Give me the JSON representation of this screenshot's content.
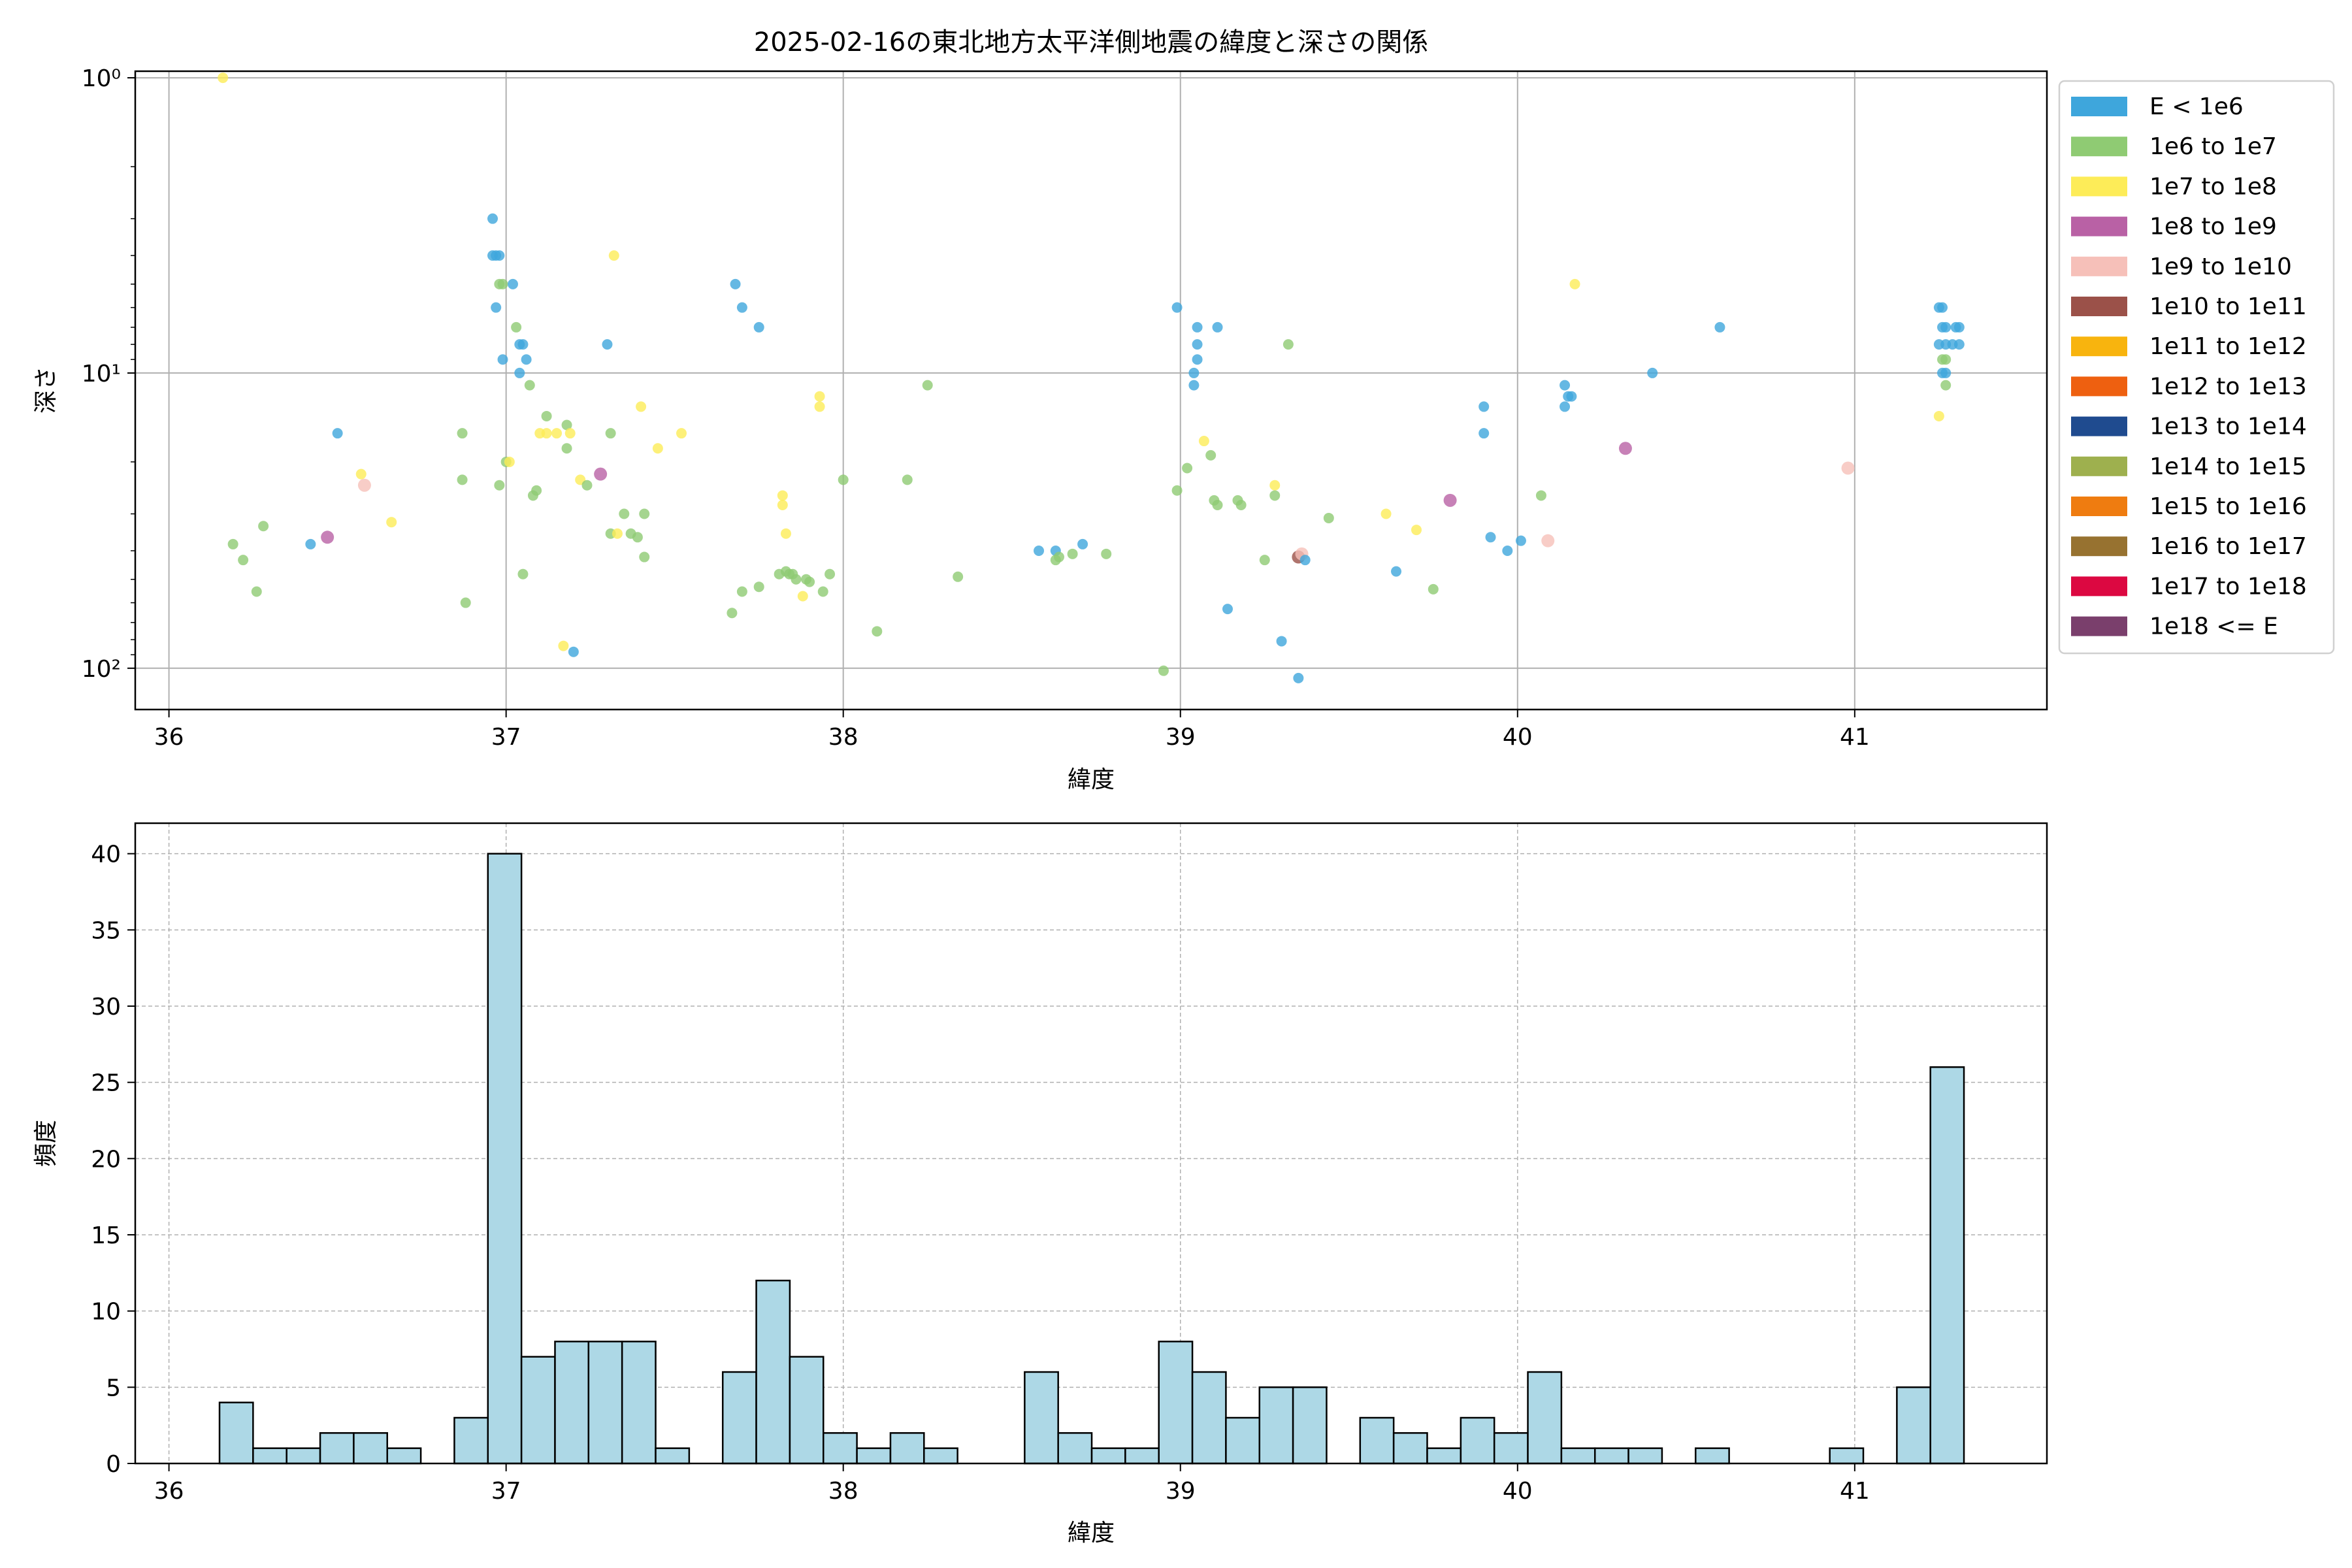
{
  "chart_data": [
    {
      "type": "scatter",
      "title": "2025-02-16の東北地方太平洋側地震の緯度と深さの関係",
      "xlabel": "緯度",
      "ylabel": "深さ",
      "xlim": [
        35.9,
        41.57
      ],
      "ylim": [
        0.95,
        138
      ],
      "y_scale": "log",
      "y_inverted": true,
      "grid": true,
      "x_ticks": [
        36,
        37,
        38,
        39,
        40,
        41
      ],
      "y_ticks": [
        {
          "value": 1,
          "label": "10⁰"
        },
        {
          "value": 10,
          "label": "10¹"
        },
        {
          "value": 100,
          "label": "10²"
        }
      ],
      "legend": {
        "placement": "outside-right",
        "entries": [
          {
            "label": "E < 1e6",
            "color": "#3ea6dc"
          },
          {
            "label": "1e6 to 1e7",
            "color": "#8fcb73"
          },
          {
            "label": "1e7 to 1e8",
            "color": "#fdec58"
          },
          {
            "label": "1e8 to 1e9",
            "color": "#b961a5"
          },
          {
            "label": "1e9 to 1e10",
            "color": "#f6c0b9"
          },
          {
            "label": "1e10 to 1e11",
            "color": "#9b5149"
          },
          {
            "label": "1e11 to 1e12",
            "color": "#f8b40e"
          },
          {
            "label": "1e12 to 1e13",
            "color": "#ee6010"
          },
          {
            "label": "1e13 to 1e14",
            "color": "#1f4b8f"
          },
          {
            "label": "1e14 to 1e15",
            "color": "#9eb04e"
          },
          {
            "label": "1e15 to 1e16",
            "color": "#ef7c10"
          },
          {
            "label": "1e16 to 1e17",
            "color": "#977230"
          },
          {
            "label": "1e17 to 1e18",
            "color": "#dc0841"
          },
          {
            "label": "1e18 <= E",
            "color": "#7a3f6c"
          }
        ]
      },
      "points": [
        [
          36.16,
          1.0,
          2
        ],
        [
          36.19,
          38,
          1
        ],
        [
          36.22,
          43,
          1
        ],
        [
          36.26,
          55,
          1
        ],
        [
          36.28,
          33,
          1
        ],
        [
          36.42,
          38,
          0
        ],
        [
          36.47,
          36,
          3
        ],
        [
          36.5,
          16,
          0
        ],
        [
          36.57,
          22,
          2
        ],
        [
          36.58,
          24,
          4
        ],
        [
          36.66,
          32,
          2
        ],
        [
          36.87,
          16,
          1
        ],
        [
          36.87,
          23,
          1
        ],
        [
          36.88,
          60,
          1
        ],
        [
          36.96,
          3.0,
          0
        ],
        [
          36.96,
          4.0,
          0
        ],
        [
          36.97,
          4.0,
          0
        ],
        [
          36.98,
          4.0,
          0
        ],
        [
          36.98,
          5.0,
          1
        ],
        [
          36.97,
          6.0,
          0
        ],
        [
          36.99,
          5.0,
          1
        ],
        [
          36.99,
          9.0,
          0
        ],
        [
          36.98,
          24,
          1
        ],
        [
          37.0,
          20,
          1
        ],
        [
          37.01,
          20,
          2
        ],
        [
          37.02,
          5.0,
          0
        ],
        [
          37.03,
          7.0,
          1
        ],
        [
          37.04,
          8.0,
          0
        ],
        [
          37.05,
          8.0,
          0
        ],
        [
          37.04,
          10,
          0
        ],
        [
          37.06,
          9.0,
          0
        ],
        [
          37.05,
          48,
          1
        ],
        [
          37.07,
          11,
          1
        ],
        [
          37.08,
          26,
          1
        ],
        [
          37.09,
          25,
          1
        ],
        [
          37.1,
          16,
          2
        ],
        [
          37.12,
          14,
          1
        ],
        [
          37.12,
          16,
          2
        ],
        [
          37.15,
          16,
          2
        ],
        [
          37.17,
          84,
          2
        ],
        [
          37.18,
          18,
          1
        ],
        [
          37.18,
          15,
          1
        ],
        [
          37.19,
          16,
          2
        ],
        [
          37.2,
          88,
          0
        ],
        [
          37.22,
          23,
          2
        ],
        [
          37.24,
          24,
          1
        ],
        [
          37.28,
          22,
          3
        ],
        [
          37.3,
          8.0,
          0
        ],
        [
          37.31,
          16,
          1
        ],
        [
          37.31,
          35,
          1
        ],
        [
          37.32,
          4.0,
          2
        ],
        [
          37.33,
          35,
          2
        ],
        [
          37.35,
          30,
          1
        ],
        [
          37.37,
          35,
          1
        ],
        [
          37.39,
          36,
          1
        ],
        [
          37.4,
          13,
          2
        ],
        [
          37.41,
          30,
          1
        ],
        [
          37.41,
          42,
          1
        ],
        [
          37.45,
          18,
          2
        ],
        [
          37.52,
          16,
          2
        ],
        [
          37.67,
          65,
          1
        ],
        [
          37.68,
          5.0,
          0
        ],
        [
          37.7,
          6.0,
          0
        ],
        [
          37.7,
          55,
          1
        ],
        [
          37.75,
          7.0,
          0
        ],
        [
          37.75,
          53,
          1
        ],
        [
          37.81,
          48,
          1
        ],
        [
          37.82,
          28,
          2
        ],
        [
          37.82,
          26,
          2
        ],
        [
          37.83,
          35,
          2
        ],
        [
          37.83,
          47,
          1
        ],
        [
          37.84,
          48,
          1
        ],
        [
          37.85,
          48,
          1
        ],
        [
          37.86,
          50,
          1
        ],
        [
          37.88,
          57,
          2
        ],
        [
          37.89,
          50,
          1
        ],
        [
          37.9,
          51,
          1
        ],
        [
          37.93,
          12,
          2
        ],
        [
          37.93,
          13,
          2
        ],
        [
          37.94,
          55,
          1
        ],
        [
          37.96,
          48,
          1
        ],
        [
          38.0,
          23,
          1
        ],
        [
          38.1,
          75,
          1
        ],
        [
          38.19,
          23,
          1
        ],
        [
          38.25,
          11,
          1
        ],
        [
          38.34,
          49,
          1
        ],
        [
          38.58,
          40,
          0
        ],
        [
          38.63,
          40,
          0
        ],
        [
          38.63,
          43,
          1
        ],
        [
          38.64,
          42,
          1
        ],
        [
          38.68,
          41,
          1
        ],
        [
          38.71,
          38,
          0
        ],
        [
          38.78,
          41,
          1
        ],
        [
          38.95,
          102,
          1
        ],
        [
          38.99,
          6.0,
          0
        ],
        [
          38.99,
          25,
          1
        ],
        [
          39.02,
          21,
          1
        ],
        [
          39.04,
          11,
          0
        ],
        [
          39.04,
          10,
          0
        ],
        [
          39.05,
          9.0,
          0
        ],
        [
          39.05,
          8.0,
          0
        ],
        [
          39.05,
          7.0,
          0
        ],
        [
          39.07,
          17,
          2
        ],
        [
          39.09,
          19,
          1
        ],
        [
          39.1,
          27,
          1
        ],
        [
          39.11,
          28,
          1
        ],
        [
          39.11,
          7.0,
          0
        ],
        [
          39.14,
          63,
          0
        ],
        [
          39.17,
          27,
          1
        ],
        [
          39.18,
          28,
          1
        ],
        [
          39.25,
          43,
          1
        ],
        [
          39.28,
          24,
          2
        ],
        [
          39.28,
          26,
          1
        ],
        [
          39.3,
          81,
          0
        ],
        [
          39.32,
          8.0,
          1
        ],
        [
          39.35,
          108,
          0
        ],
        [
          39.35,
          42,
          5
        ],
        [
          39.36,
          41,
          4
        ],
        [
          39.37,
          43,
          0
        ],
        [
          39.44,
          31,
          1
        ],
        [
          39.61,
          30,
          2
        ],
        [
          39.64,
          47,
          0
        ],
        [
          39.7,
          34,
          2
        ],
        [
          39.75,
          54,
          1
        ],
        [
          39.8,
          27,
          3
        ],
        [
          39.9,
          13,
          0
        ],
        [
          39.9,
          16,
          0
        ],
        [
          39.92,
          36,
          0
        ],
        [
          39.97,
          40,
          0
        ],
        [
          40.01,
          37,
          0
        ],
        [
          40.07,
          26,
          1
        ],
        [
          40.09,
          37,
          4
        ],
        [
          40.14,
          11,
          0
        ],
        [
          40.14,
          13,
          0
        ],
        [
          40.15,
          12,
          0
        ],
        [
          40.16,
          12,
          0
        ],
        [
          40.17,
          5.0,
          2
        ],
        [
          40.32,
          18,
          3
        ],
        [
          40.4,
          10,
          0
        ],
        [
          40.6,
          7.0,
          0
        ],
        [
          40.98,
          21,
          4
        ],
        [
          41.25,
          6.0,
          0
        ],
        [
          41.26,
          7.0,
          0
        ],
        [
          41.27,
          7.0,
          0
        ],
        [
          41.25,
          8.0,
          0
        ],
        [
          41.27,
          8.0,
          0
        ],
        [
          41.26,
          6.0,
          0
        ],
        [
          41.3,
          7.0,
          0
        ],
        [
          41.31,
          7.0,
          0
        ],
        [
          41.31,
          8.0,
          0
        ],
        [
          41.29,
          8.0,
          0
        ],
        [
          41.26,
          9.0,
          1
        ],
        [
          41.27,
          9.0,
          1
        ],
        [
          41.26,
          10,
          0
        ],
        [
          41.27,
          10,
          0
        ],
        [
          41.27,
          11,
          1
        ],
        [
          41.25,
          14,
          2
        ]
      ]
    },
    {
      "type": "bar",
      "title": "",
      "xlabel": "緯度",
      "ylabel": "頻度",
      "xlim": [
        35.9,
        41.57
      ],
      "ylim": [
        0,
        42
      ],
      "grid": true,
      "bar_color": "#add8e6",
      "x_ticks": [
        36,
        37,
        38,
        39,
        40,
        41
      ],
      "y_ticks": [
        0,
        5,
        10,
        15,
        20,
        25,
        30,
        35,
        40
      ],
      "bin_start": 36.15,
      "bin_width": 0.0995,
      "values": [
        4,
        1,
        1,
        2,
        2,
        1,
        0,
        3,
        40,
        7,
        8,
        8,
        8,
        1,
        0,
        6,
        12,
        7,
        2,
        1,
        2,
        1,
        0,
        0,
        6,
        2,
        1,
        1,
        8,
        6,
        3,
        5,
        5,
        0,
        3,
        2,
        1,
        3,
        2,
        6,
        1,
        1,
        1,
        0,
        1,
        0,
        0,
        0,
        1,
        0,
        5,
        26
      ]
    }
  ]
}
